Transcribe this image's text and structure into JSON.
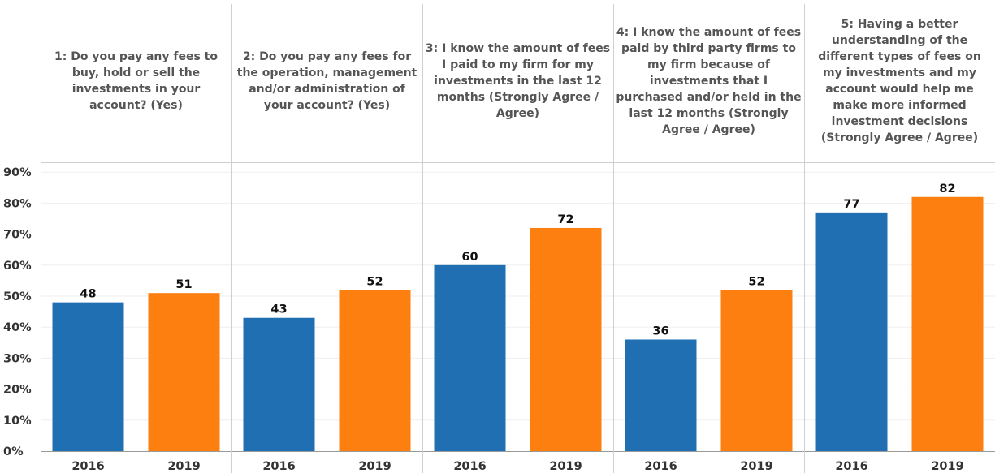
{
  "chart_data": {
    "type": "bar",
    "panels": [
      {
        "title": "1: Do you pay any fees to buy, hold or sell the investments in your account? (Yes)",
        "categories": [
          "2016",
          "2019"
        ],
        "values": [
          48,
          51
        ],
        "data_labels": [
          "48",
          "51"
        ]
      },
      {
        "title": "2: Do you pay any fees for the operation, management and/or administration of your account? (Yes)",
        "categories": [
          "2016",
          "2019"
        ],
        "values": [
          43,
          52
        ],
        "data_labels": [
          "43",
          "52"
        ]
      },
      {
        "title": "3: I know the amount of fees I paid to my firm for my investments in the last 12 months (Strongly Agree / Agree)",
        "categories": [
          "2016",
          "2019"
        ],
        "values": [
          60,
          72
        ],
        "data_labels": [
          "60",
          "72"
        ]
      },
      {
        "title": "4: I know the amount of fees paid by third party firms to my firm because of investments that I purchased and/or held in the last 12 months (Strongly Agree / Agree)",
        "categories": [
          "2016",
          "2019"
        ],
        "values": [
          36,
          52
        ],
        "data_labels": [
          "36",
          "52"
        ]
      },
      {
        "title": "5: Having a better understanding of the different types of fees on my investments and my account would help me make more informed investment decisions (Strongly Agree / Agree)",
        "categories": [
          "2016",
          "2019"
        ],
        "values": [
          77,
          82
        ],
        "data_labels": [
          "77",
          "82"
        ]
      }
    ],
    "y_ticks": [
      "0%",
      "10%",
      "20%",
      "30%",
      "40%",
      "50%",
      "60%",
      "70%",
      "80%",
      "90%"
    ],
    "ylim": [
      0,
      92
    ],
    "grid": true,
    "colors": {
      "2016": "#1f6fb2",
      "2019": "#fd7f0f"
    }
  }
}
